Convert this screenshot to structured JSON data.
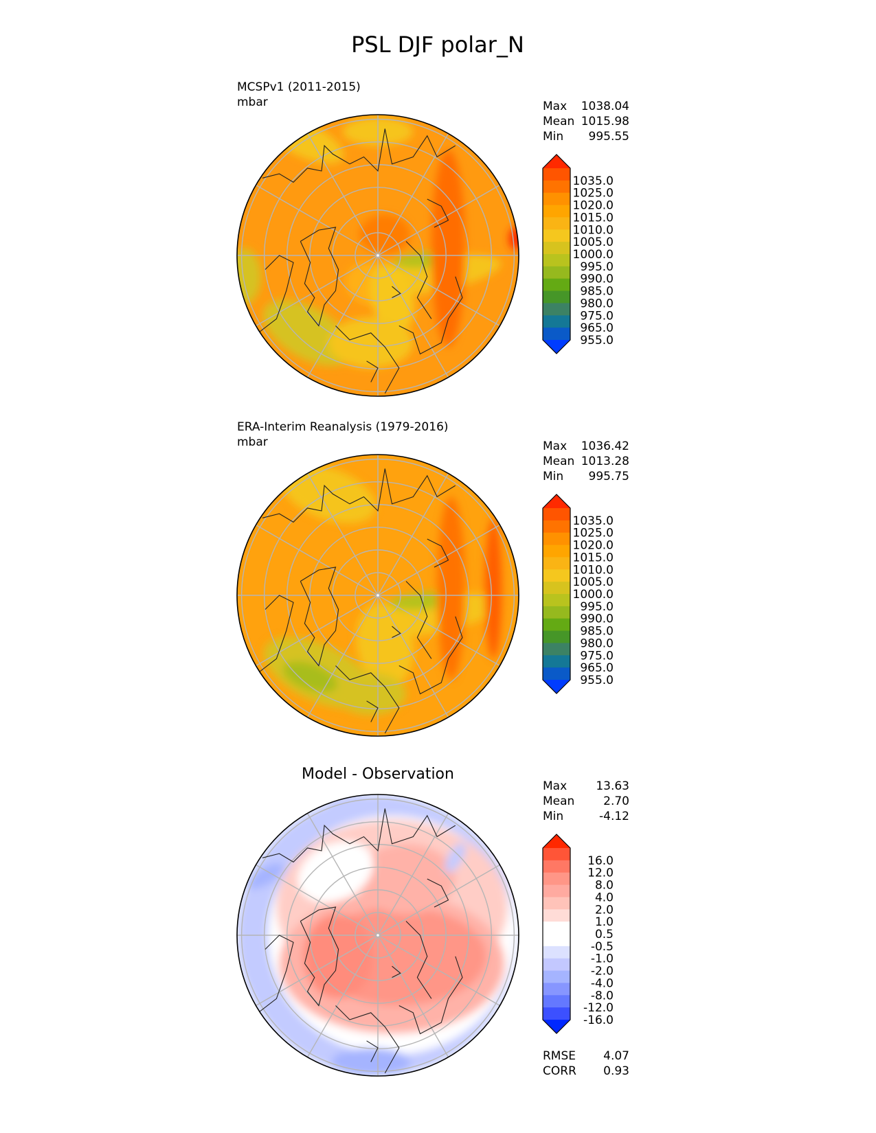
{
  "title": "PSL DJF polar_N",
  "chart_data": [
    {
      "type": "heatmap",
      "projection": "north-polar-stereographic",
      "title_lines": [
        "MCSPv1 (2011-2015)",
        "mbar"
      ],
      "stats": [
        {
          "label": "Max",
          "value": "1038.04"
        },
        {
          "label": "Mean",
          "value": "1015.98"
        },
        {
          "label": "Min",
          "value": "995.55"
        }
      ],
      "colorbar": {
        "labels": [
          "1035.0",
          "1025.0",
          "1020.0",
          "1015.0",
          "1010.0",
          "1005.0",
          "1000.0",
          "995.0",
          "990.0",
          "985.0",
          "980.0",
          "975.0",
          "965.0",
          "955.0"
        ],
        "colors": [
          "#ff2a00",
          "#ff5500",
          "#ff7300",
          "#ff9100",
          "#ffa500",
          "#fab414",
          "#f5c71e",
          "#d7c31e",
          "#b9c31e",
          "#96b91e",
          "#64aa14",
          "#469628",
          "#3c8264",
          "#147896",
          "#0a5ac8",
          "#003cff"
        ],
        "extend": "both"
      },
      "field": {
        "base": "#ff9a10",
        "fills": [
          {
            "color": "#f5c41e",
            "cx": 0.38,
            "cy": 0.14,
            "rx": 0.5,
            "ry": 0.12,
            "rot": -10
          },
          {
            "color": "#b5c21e",
            "cx": 0.36,
            "cy": 0.03,
            "rx": 0.25,
            "ry": 0.055,
            "rot": -5
          },
          {
            "color": "#ff6d00",
            "cx": 0.5,
            "cy": -0.05,
            "rx": 0.12,
            "ry": 0.7,
            "rot": 0
          },
          {
            "color": "#ff7d00",
            "cx": 0.05,
            "cy": -0.15,
            "rx": 0.18,
            "ry": 0.14,
            "rot": 0
          },
          {
            "color": "#ffb012",
            "cx": -0.05,
            "cy": 0.2,
            "rx": 0.18,
            "ry": 0.15,
            "rot": 15
          },
          {
            "color": "#f7c71e",
            "cx": 0.1,
            "cy": 0.3,
            "rx": 0.15,
            "ry": 0.25,
            "rot": -15
          },
          {
            "color": "#d6c220",
            "cx": -0.5,
            "cy": 0.55,
            "rx": 0.35,
            "ry": 0.18,
            "rot": 30
          },
          {
            "color": "#f6c41e",
            "cx": -0.05,
            "cy": 0.62,
            "rx": 0.3,
            "ry": 0.18,
            "rot": 0
          },
          {
            "color": "#d6c220",
            "cx": -0.95,
            "cy": 0.15,
            "rx": 0.12,
            "ry": 0.2,
            "rot": 0
          },
          {
            "color": "#f6c41e",
            "cx": -0.52,
            "cy": -0.82,
            "rx": 0.3,
            "ry": 0.12,
            "rot": 25
          },
          {
            "color": "#f6c41e",
            "cx": 0.0,
            "cy": -0.88,
            "rx": 0.25,
            "ry": 0.1,
            "rot": 0
          },
          {
            "color": "#ff2a00",
            "cx": 0.98,
            "cy": -0.12,
            "rx": 0.05,
            "ry": 0.08,
            "rot": 0
          }
        ]
      }
    },
    {
      "type": "heatmap",
      "projection": "north-polar-stereographic",
      "title_lines": [
        "ERA-Interim Reanalysis (1979-2016)",
        "mbar"
      ],
      "stats": [
        {
          "label": "Max",
          "value": "1036.42"
        },
        {
          "label": "Mean",
          "value": "1013.28"
        },
        {
          "label": "Min",
          "value": "995.75"
        }
      ],
      "colorbar": {
        "labels": [
          "1035.0",
          "1025.0",
          "1020.0",
          "1015.0",
          "1010.0",
          "1005.0",
          "1000.0",
          "995.0",
          "990.0",
          "985.0",
          "980.0",
          "975.0",
          "965.0",
          "955.0"
        ],
        "colors": [
          "#ff2a00",
          "#ff5500",
          "#ff7300",
          "#ff9100",
          "#ffa500",
          "#fab414",
          "#f5c71e",
          "#d7c31e",
          "#b9c31e",
          "#96b91e",
          "#64aa14",
          "#469628",
          "#3c8264",
          "#147896",
          "#0a5ac8",
          "#003cff"
        ],
        "extend": "both"
      },
      "field": {
        "base": "#ffa20e",
        "fills": [
          {
            "color": "#f5c41e",
            "cx": 0.38,
            "cy": 0.14,
            "rx": 0.5,
            "ry": 0.13,
            "rot": -10
          },
          {
            "color": "#f5c41e",
            "cx": -0.35,
            "cy": -0.72,
            "rx": 0.35,
            "ry": 0.18,
            "rot": 20
          },
          {
            "color": "#b5c21e",
            "cx": 0.33,
            "cy": 0.04,
            "rx": 0.25,
            "ry": 0.06,
            "rot": -5
          },
          {
            "color": "#ff7300",
            "cx": 0.52,
            "cy": -0.05,
            "rx": 0.1,
            "ry": 0.65,
            "rot": 0
          },
          {
            "color": "#ff5d00",
            "cx": 0.82,
            "cy": -0.05,
            "rx": 0.06,
            "ry": 0.5,
            "rot": 0
          },
          {
            "color": "#d6c220",
            "cx": -0.42,
            "cy": 0.55,
            "rx": 0.42,
            "ry": 0.2,
            "rot": 25
          },
          {
            "color": "#a8bd1e",
            "cx": -0.48,
            "cy": 0.58,
            "rx": 0.2,
            "ry": 0.09,
            "rot": 20
          },
          {
            "color": "#f6c41e",
            "cx": 0.05,
            "cy": 0.35,
            "rx": 0.2,
            "ry": 0.3,
            "rot": -10
          },
          {
            "color": "#d6c220",
            "cx": -0.05,
            "cy": 0.7,
            "rx": 0.25,
            "ry": 0.15,
            "rot": 0
          }
        ]
      }
    },
    {
      "type": "heatmap",
      "projection": "north-polar-stereographic",
      "title": "Model - Observation",
      "stats": [
        {
          "label": "Max",
          "value": "13.63"
        },
        {
          "label": "Mean",
          "value": "2.70"
        },
        {
          "label": "Min",
          "value": "-4.12"
        }
      ],
      "colorbar": {
        "labels": [
          "16.0",
          "12.0",
          "8.0",
          "4.0",
          "2.0",
          "1.0",
          "0.5",
          "-0.5",
          "-1.0",
          "-2.0",
          "-4.0",
          "-8.0",
          "-12.0",
          "-16.0"
        ],
        "colors": [
          "#ff2800",
          "#ff5537",
          "#ff7864",
          "#ff9687",
          "#ffaaa0",
          "#ffc3b9",
          "#ffdcd7",
          "#ffffff",
          "#ffffff",
          "#dce1ff",
          "#c3c8ff",
          "#a5b4ff",
          "#8796ff",
          "#6478ff",
          "#3c50ff",
          "#0028ff"
        ],
        "extend": "both"
      },
      "footer_stats": [
        {
          "label": "RMSE",
          "value": "4.07"
        },
        {
          "label": "CORR",
          "value": "0.93"
        }
      ],
      "field": {
        "base": "#ffffff",
        "fills": [
          {
            "color": "#c3cbff",
            "cx": 0.0,
            "cy": 0.0,
            "rx": 1.0,
            "ry": 1.0,
            "rot": 0
          },
          {
            "color": "#ffffff",
            "cx": 0.1,
            "cy": 0.0,
            "rx": 0.88,
            "ry": 0.85,
            "rot": 0
          },
          {
            "color": "#ffcdc6",
            "cx": 0.1,
            "cy": -0.2,
            "rx": 0.82,
            "ry": 0.62,
            "rot": 0
          },
          {
            "color": "#ffb2a8",
            "cx": 0.1,
            "cy": 0.2,
            "rx": 0.8,
            "ry": 0.5,
            "rot": 0
          },
          {
            "color": "#ff9687",
            "cx": 0.15,
            "cy": 0.15,
            "rx": 0.62,
            "ry": 0.35,
            "rot": 0
          },
          {
            "color": "#ff8c7c",
            "cx": -0.28,
            "cy": 0.15,
            "rx": 0.25,
            "ry": 0.3,
            "rot": 0
          },
          {
            "color": "#ffb2a8",
            "cx": 0.2,
            "cy": -0.4,
            "rx": 0.35,
            "ry": 0.25,
            "rot": 0
          },
          {
            "color": "#ffffff",
            "cx": -0.3,
            "cy": -0.45,
            "rx": 0.28,
            "ry": 0.2,
            "rot": -25
          },
          {
            "color": "#c3cbff",
            "cx": 0.55,
            "cy": -0.55,
            "rx": 0.05,
            "ry": 0.12,
            "rot": 30
          },
          {
            "color": "#a5b4ff",
            "cx": -0.05,
            "cy": 0.9,
            "rx": 0.28,
            "ry": 0.1,
            "rot": 0
          },
          {
            "color": "#c3cbff",
            "cx": -0.1,
            "cy": -0.95,
            "rx": 0.25,
            "ry": 0.05,
            "rot": 0
          },
          {
            "color": "#a5b4ff",
            "cx": -0.8,
            "cy": -0.42,
            "rx": 0.15,
            "ry": 0.06,
            "rot": -30
          },
          {
            "color": "#ffffff",
            "cx": 0.95,
            "cy": -0.05,
            "rx": 0.04,
            "ry": 0.05,
            "rot": 0
          }
        ]
      }
    }
  ]
}
